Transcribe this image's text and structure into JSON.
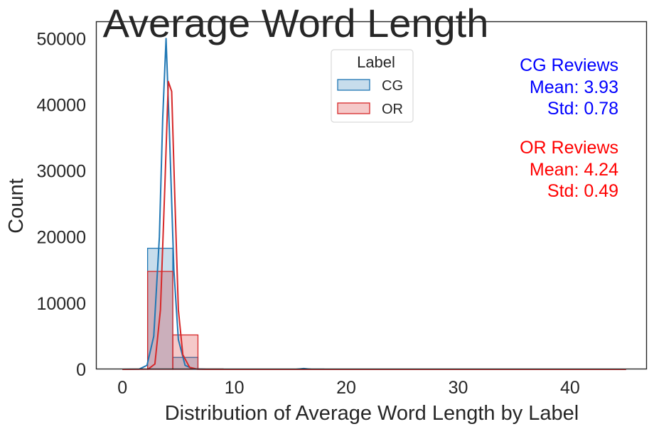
{
  "chart_data": {
    "type": "histogram",
    "title": "Average Word Length",
    "xlabel": "Distribution of Average Word Length by Label",
    "ylabel": "Count",
    "xlim": [
      -2.3,
      46.8
    ],
    "ylim": [
      0,
      52500
    ],
    "xticks": [
      0,
      10,
      20,
      30,
      40
    ],
    "yticks": [
      0,
      10000,
      20000,
      30000,
      40000,
      50000
    ],
    "grid": false,
    "legend": {
      "title": "Label",
      "position": "top-center",
      "entries": [
        "CG",
        "OR"
      ]
    },
    "bin_edges": [
      0.0,
      2.25,
      4.5,
      6.75,
      9.0,
      11.25,
      13.5,
      15.75,
      18.0,
      20.25,
      22.5,
      24.75,
      27.0,
      29.25,
      31.5,
      33.75,
      36.0,
      38.25,
      40.5,
      42.75,
      45.0
    ],
    "series": [
      {
        "name": "CG",
        "color": "#1f77b4",
        "values": [
          0,
          18300,
          1800,
          40,
          10,
          0,
          0,
          50,
          0,
          0,
          0,
          0,
          0,
          0,
          0,
          0,
          0,
          0,
          0,
          0
        ],
        "kde": [
          [
            0,
            0
          ],
          [
            1.5,
            30
          ],
          [
            2.2,
            600
          ],
          [
            2.8,
            5000
          ],
          [
            3.3,
            20000
          ],
          [
            3.6,
            38000
          ],
          [
            3.9,
            50000
          ],
          [
            4.2,
            36000
          ],
          [
            4.6,
            15000
          ],
          [
            5.0,
            4500
          ],
          [
            5.6,
            600
          ],
          [
            6.3,
            60
          ],
          [
            7.5,
            0
          ],
          [
            15.5,
            0
          ],
          [
            16.2,
            120
          ],
          [
            16.9,
            0
          ],
          [
            45,
            0
          ]
        ]
      },
      {
        "name": "OR",
        "color": "#d62728",
        "values": [
          0,
          14800,
          5200,
          60,
          0,
          0,
          0,
          0,
          0,
          0,
          0,
          0,
          0,
          0,
          0,
          0,
          0,
          0,
          0,
          0
        ],
        "kde": [
          [
            0,
            0
          ],
          [
            2.3,
            30
          ],
          [
            2.9,
            800
          ],
          [
            3.4,
            9000
          ],
          [
            3.8,
            28000
          ],
          [
            4.1,
            43500
          ],
          [
            4.4,
            42000
          ],
          [
            4.7,
            25000
          ],
          [
            5.0,
            9000
          ],
          [
            5.4,
            2200
          ],
          [
            6.0,
            300
          ],
          [
            6.7,
            20
          ],
          [
            7.5,
            0
          ],
          [
            45,
            0
          ]
        ]
      }
    ],
    "annotations": [
      {
        "color": "#0000ff",
        "lines": [
          "CG Reviews",
          "Mean: 3.93",
          "Std: 0.78"
        ]
      },
      {
        "color": "#ff0000",
        "lines": [
          "OR Reviews",
          "Mean: 4.24",
          "Std: 0.49"
        ]
      }
    ]
  }
}
